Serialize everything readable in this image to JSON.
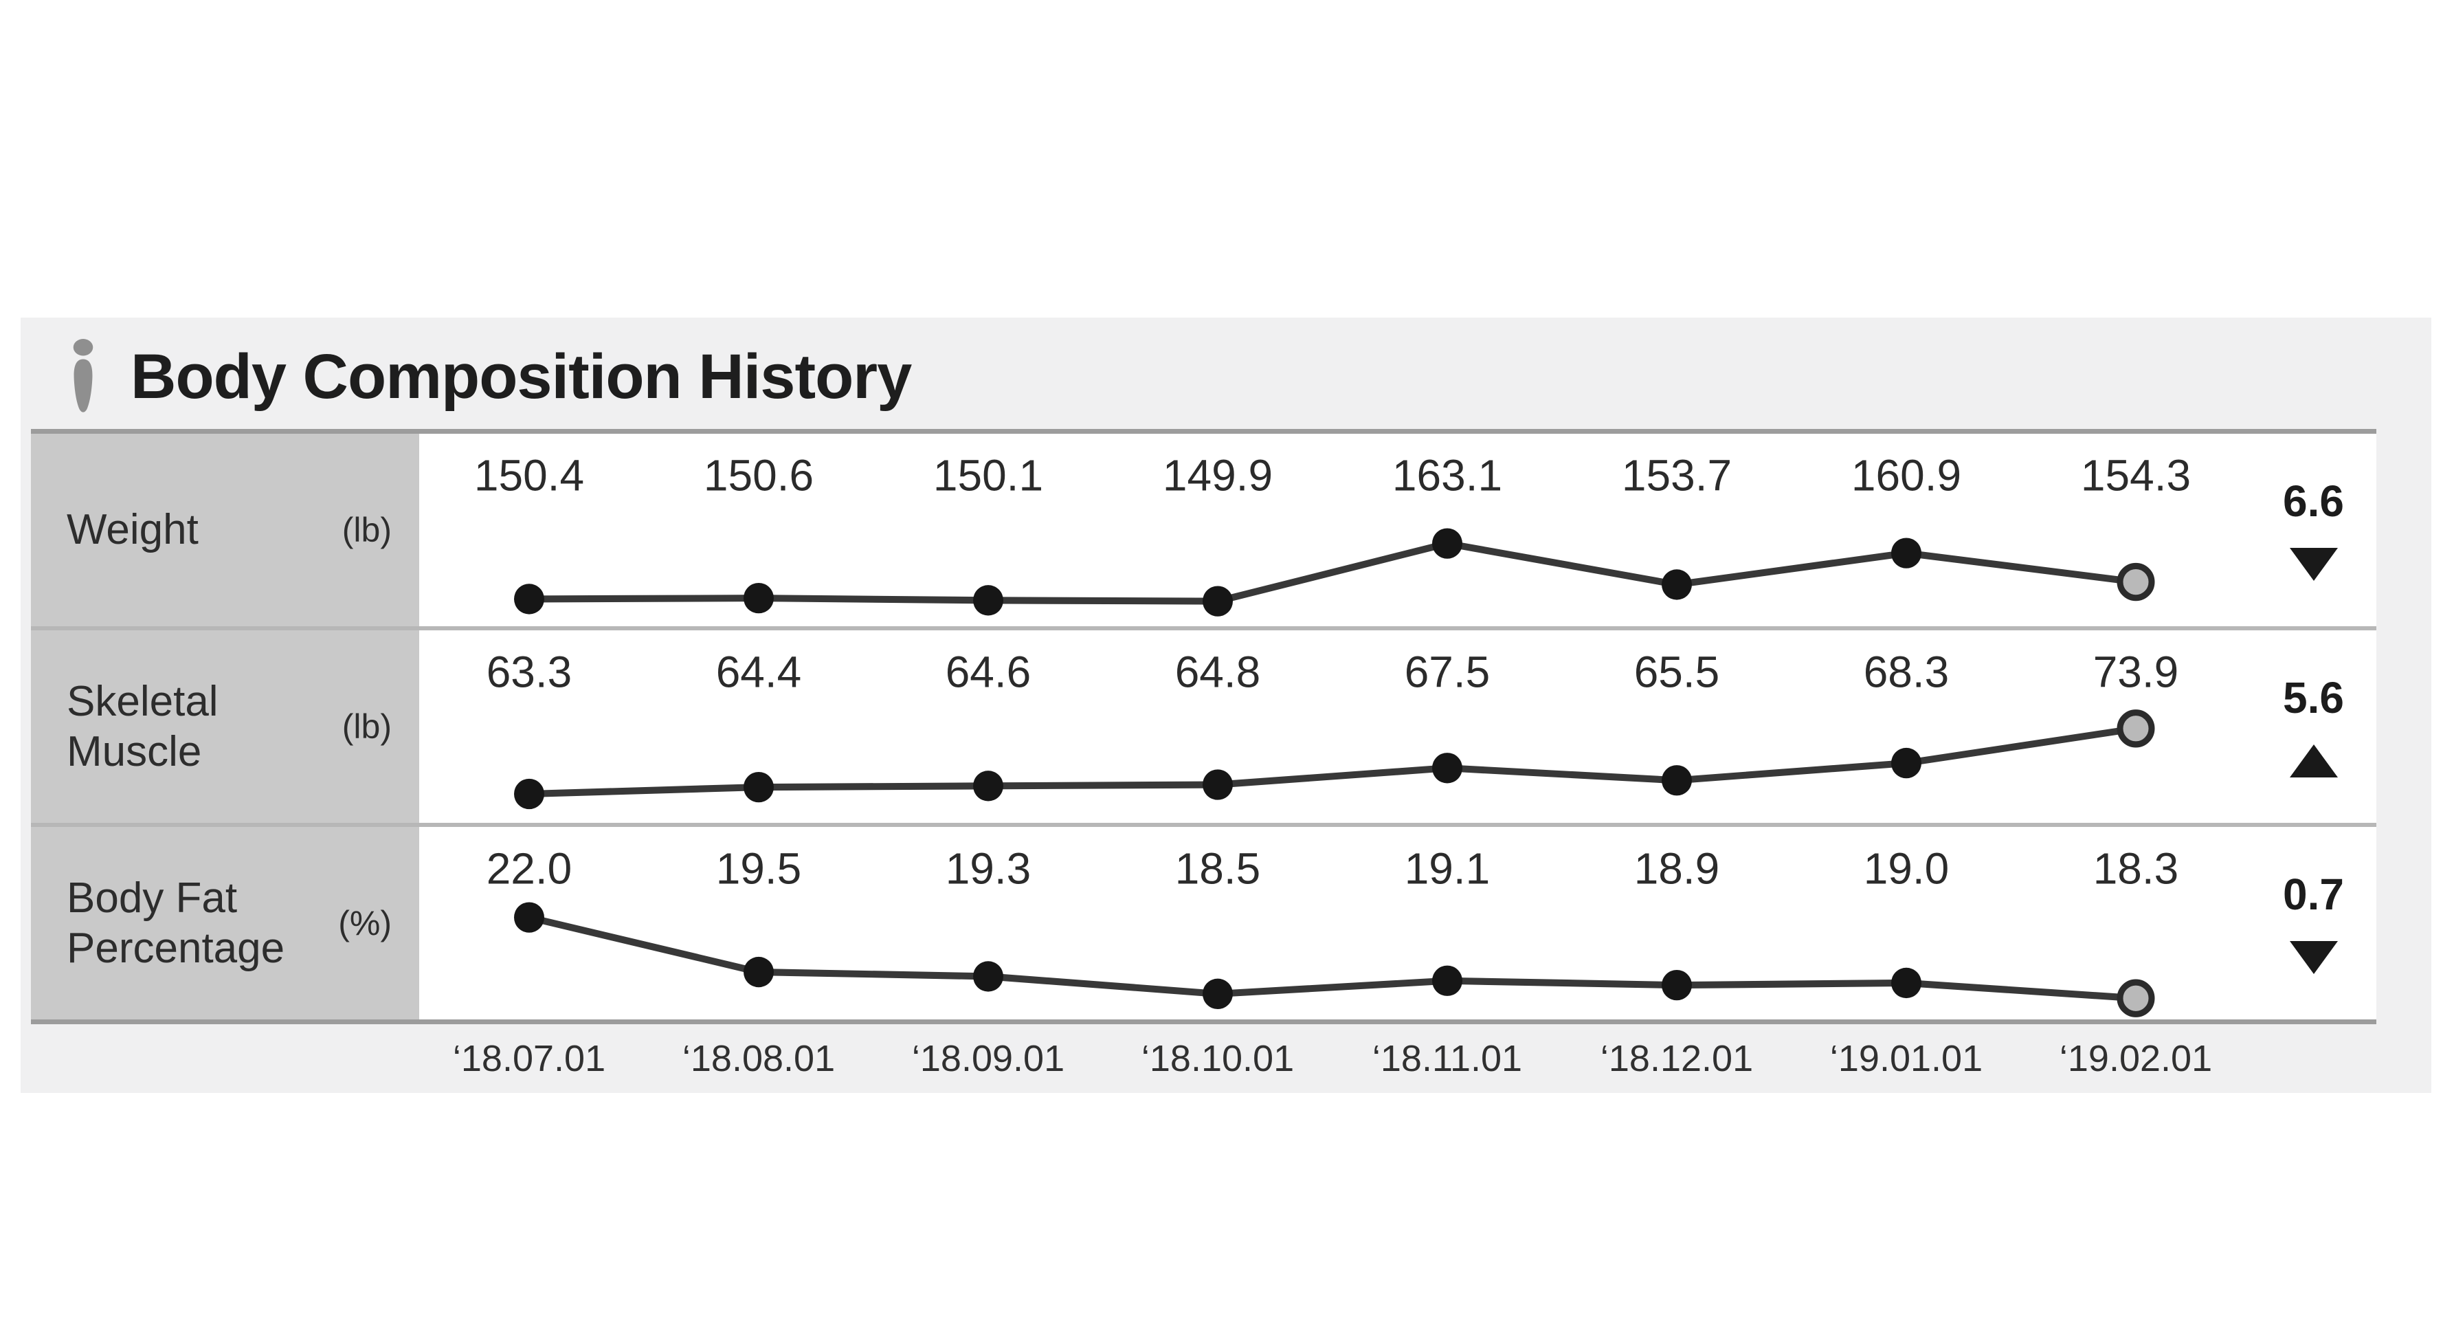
{
  "header": {
    "title": "Body Composition History",
    "icon": "person-icon"
  },
  "chart_data": {
    "type": "line",
    "title": "Body Composition History",
    "x_categories": [
      "‘18.07.01",
      "‘18.08.01",
      "‘18.09.01",
      "‘18.10.01",
      "‘18.11.01",
      "‘18.12.01",
      "‘19.01.01",
      "‘19.02.01"
    ],
    "legend_position": "none",
    "grid": "off",
    "rows": [
      {
        "label": "Weight",
        "unit": "(lb)",
        "values": [
          "150.4",
          "150.6",
          "150.1",
          "149.9",
          "163.1",
          "153.7",
          "160.9",
          "154.3"
        ],
        "change": {
          "value": "6.6",
          "direction": "down"
        },
        "dot_band": [
          0.57,
          0.87
        ]
      },
      {
        "label": "Skeletal Muscle",
        "unit": "(lb)",
        "values": [
          "63.3",
          "64.4",
          "64.6",
          "64.8",
          "67.5",
          "65.5",
          "68.3",
          "73.9"
        ],
        "change": {
          "value": "5.6",
          "direction": "up"
        },
        "dot_band": [
          0.51,
          0.85
        ]
      },
      {
        "label": "Body Fat Percentage",
        "unit": "(%)",
        "values": [
          "22.0",
          "19.5",
          "19.3",
          "18.5",
          "19.1",
          "18.9",
          "19.0",
          "18.3"
        ],
        "change": {
          "value": "0.7",
          "direction": "down"
        },
        "dot_band": [
          0.47,
          0.89
        ]
      }
    ],
    "style": {
      "line_color": "#383838",
      "dot_color": "#161616",
      "last_dot_fill": "#b9b9b9",
      "last_dot_stroke": "#2b2b2b",
      "panel_bg": "#f0f0f1",
      "label_col_bg": "#c9c9c9",
      "divider_color": "#b7b7b7",
      "border_color": "#9c9c9c",
      "marker_up": "▲",
      "marker_down": "▼"
    }
  }
}
